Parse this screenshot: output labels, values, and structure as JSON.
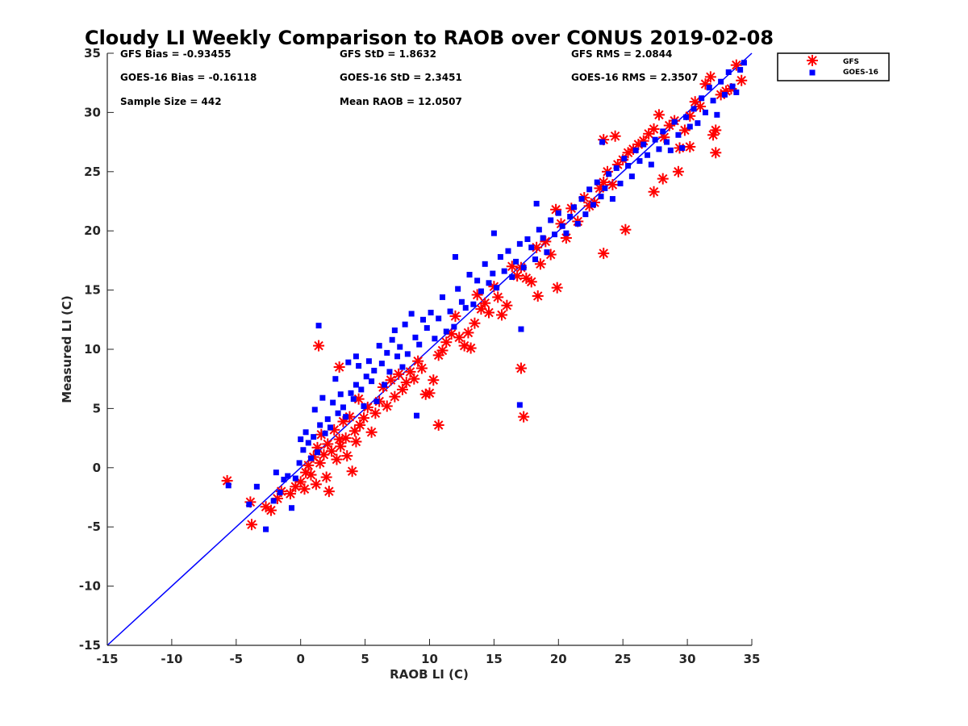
{
  "chart_data": {
    "type": "scatter",
    "title": "Cloudy LI Weekly Comparison to RAOB over CONUS 2019-02-08",
    "xlabel": "RAOB LI (C)",
    "ylabel": "Measured LI (C)",
    "xlim": [
      -15,
      35
    ],
    "ylim": [
      -15,
      35
    ],
    "xticks": [
      "-15",
      "-10",
      "-5",
      "0",
      "5",
      "10",
      "15",
      "20",
      "25",
      "30",
      "35"
    ],
    "yticks": [
      "-15",
      "-10",
      "-5",
      "0",
      "5",
      "10",
      "15",
      "20",
      "25",
      "30",
      "35"
    ],
    "grid": false,
    "legend_position": "outside top-right",
    "reference_line": {
      "x": [
        -15,
        35
      ],
      "y": [
        -15,
        35
      ],
      "color": "#0000ff"
    },
    "stats": [
      "GFS Bias = -0.93455",
      "GFS StD = 1.8632",
      "GFS RMS = 2.0844",
      "GOES-16 Bias = -0.16118",
      "GOES-16 StD = 2.3451",
      "GOES-16 RMS = 2.3507",
      "Sample Size = 442",
      "Mean RAOB = 12.0507"
    ],
    "series": [
      {
        "name": "GFS",
        "marker": "asterisk",
        "color": "#ff0000",
        "x": [
          -5.7,
          -3.9,
          -3.8,
          -2.7,
          -2.3,
          -1.8,
          -1.5,
          -0.8,
          -0.4,
          0.0,
          0.3,
          0.4,
          0.6,
          0.8,
          1.0,
          1.2,
          1.3,
          1.5,
          1.6,
          1.8,
          2.0,
          2.1,
          2.2,
          2.4,
          2.6,
          2.8,
          3.0,
          3.1,
          3.3,
          3.5,
          3.6,
          3.8,
          4.0,
          4.2,
          4.3,
          4.5,
          4.6,
          4.9,
          5.2,
          5.5,
          5.8,
          6.1,
          6.4,
          6.7,
          7.0,
          7.3,
          7.6,
          7.9,
          8.2,
          8.5,
          8.8,
          9.1,
          9.4,
          9.7,
          10.0,
          10.3,
          10.7,
          11.0,
          11.3,
          11.7,
          12.0,
          12.3,
          12.7,
          13.0,
          13.2,
          13.5,
          13.7,
          14.0,
          14.3,
          14.6,
          15.0,
          15.3,
          15.6,
          16.0,
          16.4,
          16.8,
          17.1,
          17.5,
          17.9,
          18.3,
          18.6,
          19.0,
          19.4,
          19.8,
          20.2,
          20.6,
          21.0,
          21.5,
          22.0,
          22.4,
          22.8,
          23.2,
          23.5,
          23.8,
          24.2,
          24.6,
          25.0,
          25.4,
          25.8,
          26.2,
          26.6,
          27.0,
          27.4,
          27.8,
          28.2,
          28.6,
          29.0,
          29.4,
          29.8,
          30.2,
          30.6,
          31.0,
          31.4,
          31.8,
          32.2,
          32.6,
          33.0,
          33.4,
          33.8,
          34.2,
          1.4,
          3.0,
          10.7,
          17.1,
          17.3,
          18.4,
          19.9,
          24.4,
          23.5,
          27.4,
          32.2,
          30.2,
          23.5,
          25.2,
          28.1,
          29.3,
          32.0
        ],
        "y": [
          -1.1,
          -2.9,
          -4.8,
          -3.3,
          -3.6,
          -2.6,
          -2.0,
          -2.2,
          -1.6,
          -1.2,
          -1.8,
          -0.4,
          0.2,
          -0.6,
          0.9,
          -1.4,
          1.7,
          0.4,
          2.8,
          1.1,
          -0.8,
          2.0,
          -2.0,
          1.4,
          3.2,
          0.7,
          2.4,
          1.8,
          3.9,
          2.5,
          1.0,
          4.3,
          -0.3,
          3.1,
          2.2,
          5.8,
          3.6,
          4.2,
          5.1,
          3.0,
          4.6,
          5.6,
          6.8,
          5.2,
          7.4,
          6.0,
          7.9,
          6.6,
          7.2,
          8.1,
          7.5,
          9.0,
          8.4,
          6.2,
          6.3,
          7.4,
          9.5,
          9.9,
          10.6,
          11.3,
          12.8,
          11.0,
          10.3,
          11.4,
          10.1,
          12.2,
          14.6,
          13.4,
          13.9,
          13.1,
          15.3,
          14.4,
          12.9,
          13.7,
          17.0,
          16.2,
          16.9,
          16.0,
          15.7,
          18.6,
          17.2,
          19.1,
          18.0,
          21.8,
          20.6,
          19.4,
          21.9,
          20.8,
          22.8,
          22.1,
          22.4,
          23.6,
          24.1,
          25.0,
          23.9,
          25.6,
          26.0,
          26.6,
          26.9,
          27.3,
          27.6,
          28.2,
          28.6,
          29.8,
          27.9,
          28.9,
          29.3,
          27.0,
          28.5,
          29.7,
          30.9,
          30.5,
          32.4,
          33.0,
          28.5,
          31.5,
          31.8,
          32.0,
          34.0,
          32.7,
          10.3,
          8.5,
          3.6,
          8.4,
          4.3,
          14.5,
          15.2,
          28.0,
          27.7,
          23.3,
          26.6,
          27.1,
          18.1,
          20.1,
          24.4,
          25.0,
          28.1
        ]
      },
      {
        "name": "GOES-16",
        "marker": "square",
        "color": "#0000ff",
        "x": [
          -5.6,
          -4.0,
          -3.4,
          -2.7,
          -2.1,
          -1.9,
          -1.6,
          -1.3,
          -1.0,
          -0.7,
          -0.4,
          -0.1,
          0.0,
          0.2,
          0.4,
          0.6,
          0.8,
          1.0,
          1.1,
          1.3,
          1.5,
          1.7,
          1.9,
          2.1,
          2.3,
          2.5,
          2.7,
          2.9,
          3.1,
          3.3,
          3.5,
          3.7,
          3.9,
          4.1,
          4.3,
          4.5,
          4.7,
          4.9,
          5.1,
          5.3,
          5.5,
          5.7,
          5.9,
          6.1,
          6.3,
          6.5,
          6.7,
          6.9,
          7.1,
          7.3,
          7.5,
          7.7,
          7.9,
          8.1,
          8.3,
          8.6,
          8.9,
          9.2,
          9.5,
          9.8,
          10.1,
          10.4,
          10.7,
          11.0,
          11.3,
          11.6,
          11.9,
          12.2,
          12.5,
          12.8,
          13.1,
          13.4,
          13.7,
          14.0,
          14.3,
          14.6,
          14.9,
          15.2,
          15.5,
          15.8,
          16.1,
          16.4,
          16.7,
          17.0,
          17.3,
          17.6,
          17.9,
          18.2,
          18.5,
          18.8,
          19.1,
          19.4,
          19.7,
          20.0,
          20.3,
          20.6,
          20.9,
          21.2,
          21.5,
          21.8,
          22.1,
          22.4,
          22.7,
          23.0,
          23.3,
          23.6,
          23.9,
          24.2,
          24.5,
          24.8,
          25.1,
          25.4,
          25.7,
          26.0,
          26.3,
          26.6,
          26.9,
          27.2,
          27.5,
          27.8,
          28.1,
          28.4,
          28.7,
          29.0,
          29.3,
          29.6,
          29.9,
          30.2,
          30.5,
          30.8,
          31.1,
          31.4,
          31.7,
          32.0,
          32.3,
          32.6,
          32.9,
          33.2,
          33.5,
          33.8,
          34.1,
          34.4,
          1.4,
          4.3,
          9.0,
          17.1,
          17.0,
          15.0,
          12.0,
          18.3,
          23.4
        ],
        "y": [
          -1.5,
          -3.1,
          -1.6,
          -5.2,
          -2.8,
          -0.4,
          -2.1,
          -1.0,
          -0.7,
          -3.4,
          -0.9,
          0.4,
          2.4,
          1.5,
          3.0,
          2.1,
          0.8,
          2.6,
          4.9,
          1.3,
          3.6,
          5.9,
          2.9,
          4.1,
          3.4,
          5.5,
          7.5,
          4.6,
          6.2,
          5.1,
          4.3,
          8.9,
          6.3,
          5.8,
          7.0,
          8.6,
          6.6,
          5.2,
          7.7,
          9.0,
          7.3,
          8.2,
          5.6,
          10.3,
          8.8,
          7.0,
          9.7,
          8.1,
          10.8,
          11.6,
          9.4,
          10.2,
          8.5,
          12.1,
          9.6,
          13.0,
          11.0,
          10.4,
          12.5,
          11.8,
          13.1,
          10.9,
          12.6,
          14.4,
          11.5,
          13.2,
          11.9,
          15.1,
          14.0,
          13.5,
          16.3,
          13.8,
          15.8,
          14.9,
          17.2,
          15.6,
          16.4,
          15.2,
          17.8,
          16.6,
          18.3,
          16.1,
          17.4,
          18.9,
          16.9,
          19.3,
          18.6,
          17.6,
          20.1,
          19.4,
          18.2,
          20.9,
          19.7,
          21.5,
          20.4,
          19.8,
          21.2,
          22.0,
          20.6,
          22.7,
          21.4,
          23.5,
          22.2,
          24.1,
          22.9,
          23.6,
          24.8,
          22.7,
          25.3,
          24.0,
          26.1,
          25.5,
          24.6,
          26.8,
          25.9,
          27.3,
          26.4,
          25.6,
          27.7,
          26.9,
          28.4,
          27.5,
          26.8,
          29.2,
          28.1,
          27.0,
          29.6,
          28.8,
          30.3,
          29.1,
          31.2,
          30.0,
          32.1,
          31.0,
          29.8,
          32.6,
          31.5,
          33.4,
          32.2,
          31.7,
          33.6,
          34.2,
          12.0,
          9.4,
          4.4,
          11.7,
          5.3,
          19.8,
          17.8,
          22.3,
          27.5
        ]
      }
    ]
  }
}
